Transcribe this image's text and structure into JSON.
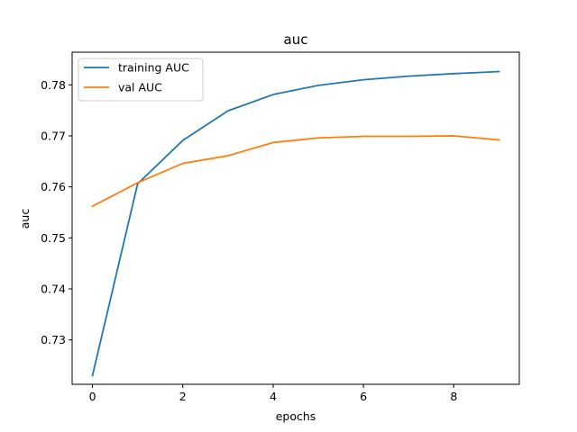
{
  "chart_data": {
    "type": "line",
    "title": "auc",
    "xlabel": "epochs",
    "ylabel": "auc",
    "x": [
      0,
      1,
      2,
      3,
      4,
      5,
      6,
      7,
      8,
      9
    ],
    "xlim": [
      -0.45,
      9.45
    ],
    "ylim": [
      0.7213,
      0.7864
    ],
    "xticks": [
      0,
      2,
      4,
      6,
      8
    ],
    "yticks": [
      0.73,
      0.74,
      0.75,
      0.76,
      0.77,
      0.78
    ],
    "ytick_labels": [
      "0.73",
      "0.74",
      "0.75",
      "0.76",
      "0.77",
      "0.78"
    ],
    "grid": false,
    "legend_position": "upper-left",
    "series": [
      {
        "name": "training AUC",
        "color": "#1f77b4",
        "values": [
          0.723,
          0.7606,
          0.7691,
          0.7749,
          0.7781,
          0.7799,
          0.781,
          0.7817,
          0.7822,
          0.7826
        ]
      },
      {
        "name": "val AUC",
        "color": "#ff7f0e",
        "values": [
          0.7562,
          0.7608,
          0.7646,
          0.7661,
          0.7687,
          0.7696,
          0.7699,
          0.7699,
          0.77,
          0.7692
        ]
      }
    ]
  }
}
